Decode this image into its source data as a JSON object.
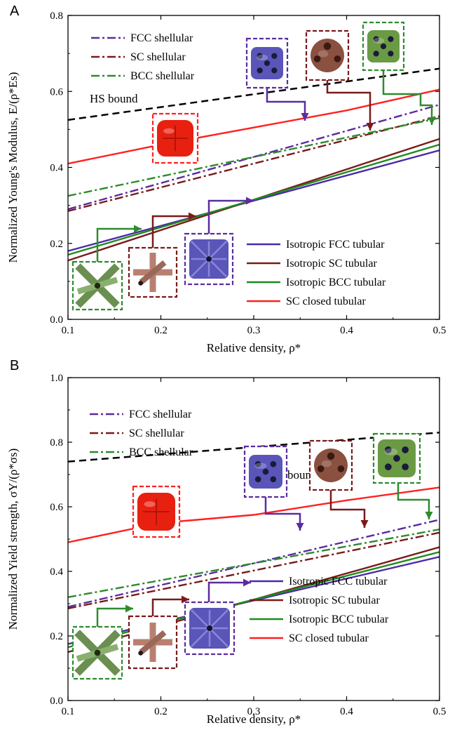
{
  "chart_data": [
    {
      "panel": "A",
      "type": "line",
      "xlabel": "Relative density, ρ*",
      "ylabel": "Normalized Young's Modulus, E/(ρ*Es)",
      "xlim": [
        0.1,
        0.5
      ],
      "ylim": [
        0.0,
        0.8
      ],
      "xticks": [
        "0.1",
        "0.2",
        "0.3",
        "0.4",
        "0.5"
      ],
      "yticks": [
        "0.0",
        "0.2",
        "0.4",
        "0.6",
        "0.8"
      ],
      "grid": false,
      "annotation": "HS bound",
      "legend_upper": [
        "FCC shellular",
        "SC shellular",
        "BCC shellular"
      ],
      "legend_lower": [
        "Isotropic FCC tubular",
        "Isotropic SC tubular",
        "Isotropic BCC tubular",
        "SC closed tubular"
      ],
      "series": [
        {
          "name": "HS bound",
          "color": "#000000",
          "style": "dashed",
          "x": [
            0.1,
            0.5
          ],
          "y": [
            0.525,
            0.66
          ]
        },
        {
          "name": "SC closed tubular",
          "color": "#ff2020",
          "style": "solid",
          "x": [
            0.1,
            0.2,
            0.3,
            0.4,
            0.5
          ],
          "y": [
            0.41,
            0.46,
            0.505,
            0.55,
            0.605
          ]
        },
        {
          "name": "FCC shellular",
          "color": "#5a2ca0",
          "style": "dashdot",
          "x": [
            0.1,
            0.5
          ],
          "y": [
            0.29,
            0.565
          ]
        },
        {
          "name": "SC shellular",
          "color": "#7a1a1a",
          "style": "dashdot",
          "x": [
            0.1,
            0.5
          ],
          "y": [
            0.285,
            0.535
          ]
        },
        {
          "name": "BCC shellular",
          "color": "#2e8b2e",
          "style": "dashdot",
          "x": [
            0.1,
            0.5
          ],
          "y": [
            0.325,
            0.53
          ]
        },
        {
          "name": "Isotropic FCC tubular",
          "color": "#4b2aa8",
          "style": "solid",
          "x": [
            0.1,
            0.5
          ],
          "y": [
            0.18,
            0.445
          ]
        },
        {
          "name": "Isotropic SC tubular",
          "color": "#7a1a1a",
          "style": "solid",
          "x": [
            0.1,
            0.5
          ],
          "y": [
            0.155,
            0.475
          ]
        },
        {
          "name": "Isotropic BCC tubular",
          "color": "#1e8c1e",
          "style": "solid",
          "x": [
            0.1,
            0.5
          ],
          "y": [
            0.17,
            0.46
          ]
        }
      ]
    },
    {
      "panel": "B",
      "type": "line",
      "xlabel": "Relative density, ρ*",
      "ylabel": "Normalized Yield strength, σY/(ρ*σs)",
      "xlim": [
        0.1,
        0.5
      ],
      "ylim": [
        0.0,
        1.0
      ],
      "xticks": [
        "0.1",
        "0.2",
        "0.3",
        "0.4",
        "0.5"
      ],
      "yticks": [
        "0.0",
        "0.2",
        "0.4",
        "0.6",
        "0.8",
        "1.0"
      ],
      "grid": false,
      "annotation": "HS bound",
      "legend_upper": [
        "FCC shellular",
        "SC shellular",
        "BCC shellular"
      ],
      "legend_lower": [
        "Isotropic FCC tubular",
        "Isotropic SC tubular",
        "Isotropic BCC tubular",
        "SC closed tubular"
      ],
      "series": [
        {
          "name": "HS bound",
          "color": "#000000",
          "style": "dashed",
          "x": [
            0.1,
            0.5
          ],
          "y": [
            0.74,
            0.83
          ]
        },
        {
          "name": "SC closed tubular",
          "color": "#ff2020",
          "style": "solid",
          "x": [
            0.1,
            0.2,
            0.3,
            0.4,
            0.5
          ],
          "y": [
            0.49,
            0.55,
            0.575,
            0.62,
            0.66
          ]
        },
        {
          "name": "FCC shellular",
          "color": "#5a2ca0",
          "style": "dashdot",
          "x": [
            0.1,
            0.5
          ],
          "y": [
            0.29,
            0.56
          ]
        },
        {
          "name": "SC shellular",
          "color": "#7a1a1a",
          "style": "dashdot",
          "x": [
            0.1,
            0.5
          ],
          "y": [
            0.285,
            0.52
          ]
        },
        {
          "name": "BCC shellular",
          "color": "#2e8b2e",
          "style": "dashdot",
          "x": [
            0.1,
            0.5
          ],
          "y": [
            0.32,
            0.53
          ]
        },
        {
          "name": "Isotropic FCC tubular",
          "color": "#4b2aa8",
          "style": "solid",
          "x": [
            0.1,
            0.5
          ],
          "y": [
            0.175,
            0.445
          ]
        },
        {
          "name": "Isotropic SC tubular",
          "color": "#7a1a1a",
          "style": "solid",
          "x": [
            0.1,
            0.5
          ],
          "y": [
            0.15,
            0.475
          ]
        },
        {
          "name": "Isotropic BCC tubular",
          "color": "#1e8c1e",
          "style": "solid",
          "x": [
            0.1,
            0.5
          ],
          "y": [
            0.165,
            0.46
          ]
        }
      ]
    }
  ],
  "insets": {
    "fcc_shellular_icon": "fcc-shellular-unit-cell",
    "sc_shellular_icon": "sc-shellular-unit-cell",
    "bcc_shellular_icon": "bcc-shellular-unit-cell",
    "sc_closed_icon": "sc-closed-tubular-unit-cell",
    "bcc_tubular_icon": "bcc-tubular-unit-cell",
    "sc_tubular_icon": "sc-tubular-unit-cell",
    "fcc_tubular_icon": "fcc-tubular-unit-cell"
  }
}
